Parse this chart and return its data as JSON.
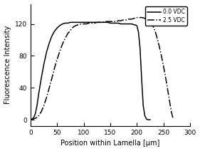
{
  "title": "",
  "xlabel": "Position within Lamella [µm]",
  "ylabel": "Fluorescence Intensity",
  "xlim": [
    0,
    300
  ],
  "ylim": [
    -8,
    145
  ],
  "xticks": [
    0,
    50,
    100,
    150,
    200,
    250,
    300
  ],
  "yticks": [
    0,
    40,
    80,
    120
  ],
  "legend": [
    "0.0 VDC",
    "2.5 VDC"
  ],
  "line1_color": "#000000",
  "line2_color": "#000000",
  "line1_style": "solid",
  "line2_style": "dashdot",
  "line1_x": [
    0,
    3,
    6,
    9,
    12,
    15,
    20,
    25,
    30,
    35,
    40,
    45,
    50,
    55,
    60,
    65,
    70,
    75,
    80,
    85,
    90,
    95,
    100,
    105,
    110,
    115,
    120,
    125,
    130,
    135,
    140,
    145,
    150,
    155,
    160,
    165,
    170,
    175,
    180,
    185,
    190,
    195,
    200,
    203,
    206,
    208,
    210,
    212,
    215,
    218,
    220,
    225
  ],
  "line1_y": [
    0,
    1,
    3,
    8,
    18,
    32,
    52,
    70,
    85,
    96,
    105,
    111,
    115,
    118,
    120,
    121,
    121,
    122,
    122,
    122,
    122,
    122,
    122,
    122,
    122,
    122,
    122,
    122,
    122,
    122,
    122,
    122,
    121,
    121,
    121,
    121,
    120,
    120,
    120,
    120,
    120,
    119,
    118,
    110,
    90,
    65,
    40,
    18,
    5,
    1,
    0,
    0
  ],
  "line2_x": [
    0,
    5,
    10,
    15,
    20,
    25,
    30,
    35,
    40,
    45,
    50,
    55,
    60,
    65,
    70,
    75,
    80,
    85,
    90,
    95,
    100,
    105,
    110,
    115,
    120,
    125,
    130,
    135,
    140,
    145,
    150,
    155,
    160,
    165,
    170,
    175,
    180,
    185,
    190,
    195,
    200,
    205,
    210,
    215,
    220,
    225,
    230,
    235,
    240,
    245,
    250,
    255,
    260,
    265,
    268
  ],
  "line2_y": [
    0,
    1,
    2,
    5,
    10,
    18,
    28,
    40,
    52,
    65,
    76,
    86,
    95,
    102,
    108,
    112,
    116,
    118,
    119,
    120,
    120,
    120,
    121,
    121,
    121,
    122,
    122,
    122,
    123,
    123,
    123,
    123,
    123,
    124,
    124,
    125,
    125,
    126,
    126,
    127,
    128,
    128,
    128,
    127,
    125,
    122,
    118,
    110,
    98,
    84,
    68,
    50,
    30,
    10,
    2
  ]
}
